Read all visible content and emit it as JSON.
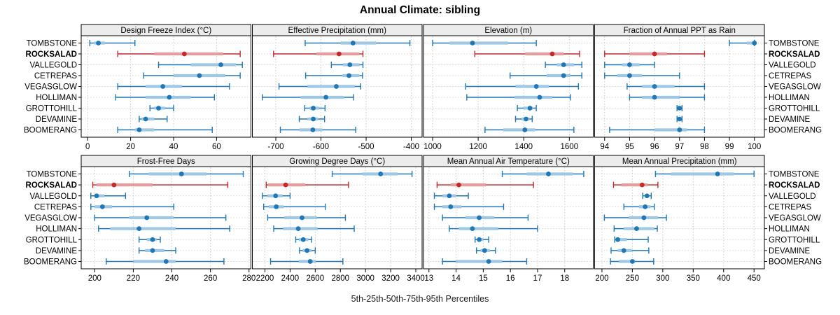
{
  "title": "Annual Climate: sibling",
  "footer": "5th-25th-50th-75th-95th Percentiles",
  "sites": [
    "TOMBSTONE",
    "ROCKSALAD",
    "VALLEGOLD",
    "CETREPAS",
    "VEGASGLOW",
    "HOLLIMAN",
    "GROTTOHILL",
    "DEVAMINE",
    "BOOMERANG"
  ],
  "highlight_site": "ROCKSALAD",
  "colors": {
    "series_line": "#1F77B4",
    "series_band": "#9EC8E4",
    "highlight_line": "#C32A2A",
    "highlight_band": "#E49C9C",
    "grid": "#c9c9c9",
    "panel_border": "#000000",
    "header_bg": "#ececec"
  },
  "chart_data": {
    "type": "dotplot-percentiles",
    "title": "Annual Climate: sibling",
    "caption": "5th-25th-50th-75th-95th Percentiles",
    "percentile_labels": [
      "5th",
      "25th",
      "50th",
      "75th",
      "95th"
    ],
    "rows": [
      "TOMBSTONE",
      "ROCKSALAD",
      "VALLEGOLD",
      "CETREPAS",
      "VEGASGLOW",
      "HOLLIMAN",
      "GROTTOHILL",
      "DEVAMINE",
      "BOOMERANG"
    ],
    "highlight_row": "ROCKSALAD",
    "panels": [
      {
        "title": "Design Freeze Index (°C)",
        "grid_row": 0,
        "grid_col": 0,
        "xlim": [
          -3,
          76
        ],
        "ticks": [
          0,
          20,
          40,
          60
        ],
        "values": [
          [
            1,
            3,
            5,
            8,
            22
          ],
          [
            14,
            31,
            45,
            63,
            71
          ],
          [
            33,
            48,
            62,
            69,
            72
          ],
          [
            26,
            40,
            52,
            64,
            71
          ],
          [
            14,
            27,
            35,
            44,
            66
          ],
          [
            13,
            27,
            38,
            48,
            59
          ],
          [
            29,
            31,
            33,
            36,
            40
          ],
          [
            24,
            25,
            27,
            31,
            37
          ],
          [
            14,
            22,
            24,
            31,
            58
          ]
        ]
      },
      {
        "title": "Effective Precipitation (mm)",
        "grid_row": 0,
        "grid_col": 1,
        "xlim": [
          -752,
          -376
        ],
        "ticks": [
          -700,
          -600,
          -500,
          -400
        ],
        "values": [
          [
            -635,
            -556,
            -529,
            -478,
            -403
          ],
          [
            -705,
            -610,
            -560,
            -515,
            -507
          ],
          [
            -577,
            -551,
            -536,
            -515,
            -507
          ],
          [
            -634,
            -553,
            -538,
            -515,
            -508
          ],
          [
            -693,
            -630,
            -566,
            -525,
            -512
          ],
          [
            -730,
            -645,
            -589,
            -549,
            -528
          ],
          [
            -636,
            -625,
            -617,
            -604,
            -591
          ],
          [
            -648,
            -630,
            -617,
            -606,
            -592
          ],
          [
            -690,
            -648,
            -618,
            -597,
            -523
          ]
        ]
      },
      {
        "title": "Elevation (m)",
        "grid_row": 0,
        "grid_col": 2,
        "xlim": [
          960,
          1705
        ],
        "ticks": [
          1000,
          1200,
          1400,
          1600
        ],
        "values": [
          [
            1000,
            1075,
            1175,
            1330,
            1455
          ],
          [
            1185,
            1405,
            1525,
            1575,
            1645
          ],
          [
            1495,
            1545,
            1575,
            1620,
            1655
          ],
          [
            1340,
            1500,
            1575,
            1605,
            1655
          ],
          [
            1145,
            1365,
            1455,
            1510,
            1640
          ],
          [
            1150,
            1360,
            1470,
            1525,
            1605
          ],
          [
            1372,
            1400,
            1427,
            1440,
            1455
          ],
          [
            1364,
            1390,
            1410,
            1425,
            1437
          ],
          [
            1230,
            1310,
            1405,
            1450,
            1620
          ]
        ]
      },
      {
        "title": "Fraction of Annual PPT as Rain",
        "grid_row": 0,
        "grid_col": 3,
        "xlim": [
          93.6,
          100.4
        ],
        "ticks": [
          94,
          95,
          96,
          97,
          98,
          99,
          100
        ],
        "values": [
          [
            99,
            99.7,
            100,
            100,
            100
          ],
          [
            94,
            95,
            96,
            96.5,
            98
          ],
          [
            94,
            94.7,
            95,
            95.4,
            96
          ],
          [
            94,
            94.5,
            95,
            95.5,
            97
          ],
          [
            94.9,
            95.5,
            96,
            96.8,
            98
          ],
          [
            95,
            95.5,
            96,
            97,
            98
          ],
          [
            96.9,
            97,
            97,
            97,
            97.1
          ],
          [
            96.9,
            97,
            97,
            97,
            97.1
          ],
          [
            94.2,
            96,
            97,
            97.3,
            98
          ]
        ]
      },
      {
        "title": "Frost-Free Days",
        "grid_row": 1,
        "grid_col": 0,
        "xlim": [
          193,
          281
        ],
        "ticks": [
          200,
          220,
          240,
          260,
          280
        ],
        "values": [
          [
            218,
            228,
            245,
            258,
            277
          ],
          [
            199,
            201,
            210,
            230,
            269
          ],
          [
            198,
            200,
            201,
            205,
            216
          ],
          [
            198,
            200,
            204,
            209,
            241
          ],
          [
            200,
            218,
            227,
            241,
            268
          ],
          [
            202,
            208,
            223,
            242,
            270
          ],
          [
            223,
            227,
            230,
            232,
            234
          ],
          [
            223,
            226,
            230,
            236,
            242
          ],
          [
            206,
            220,
            237,
            242,
            267
          ]
        ]
      },
      {
        "title": "Growing Degree Days (°C)",
        "grid_row": 1,
        "grid_col": 1,
        "xlim": [
          2100,
          3450
        ],
        "ticks": [
          2200,
          2400,
          2600,
          2800,
          3000,
          3200,
          3400
        ],
        "values": [
          [
            2735,
            2975,
            3120,
            3255,
            3370
          ],
          [
            2210,
            2225,
            2365,
            2520,
            2865
          ],
          [
            2180,
            2220,
            2285,
            2340,
            2400
          ],
          [
            2190,
            2230,
            2290,
            2350,
            2680
          ],
          [
            2222,
            2355,
            2495,
            2615,
            2840
          ],
          [
            2270,
            2345,
            2465,
            2620,
            2910
          ],
          [
            2445,
            2470,
            2505,
            2545,
            2570
          ],
          [
            2475,
            2500,
            2535,
            2570,
            2600
          ],
          [
            2245,
            2470,
            2560,
            2605,
            2820
          ]
        ]
      },
      {
        "title": "Mean Annual Air Temperature (°C)",
        "grid_row": 1,
        "grid_col": 2,
        "xlim": [
          12.8,
          19.05
        ],
        "ticks": [
          13,
          14,
          15,
          16,
          17,
          18
        ],
        "values": [
          [
            15.7,
            16.6,
            17.4,
            18.3,
            18.7
          ],
          [
            13.3,
            13.8,
            14.1,
            15.1,
            16.85
          ],
          [
            13.2,
            13.5,
            13.75,
            14.0,
            14.45
          ],
          [
            13.2,
            13.5,
            13.8,
            14.2,
            15.75
          ],
          [
            13.5,
            14.35,
            14.85,
            15.4,
            16.65
          ],
          [
            13.75,
            14.1,
            14.6,
            15.55,
            17.0
          ],
          [
            14.7,
            14.8,
            14.85,
            15.0,
            15.2
          ],
          [
            14.75,
            14.9,
            15.05,
            15.25,
            15.45
          ],
          [
            13.5,
            14.0,
            15.2,
            15.7,
            16.6
          ]
        ]
      },
      {
        "title": "Mean Annual Precipitation (mm)",
        "grid_row": 1,
        "grid_col": 3,
        "xlim": [
          188,
          467
        ],
        "ticks": [
          200,
          250,
          300,
          350,
          400,
          450
        ],
        "values": [
          [
            288,
            313,
            390,
            417,
            450
          ],
          [
            219,
            232,
            266,
            275,
            292
          ],
          [
            267,
            271,
            274,
            277,
            281
          ],
          [
            236,
            261,
            271,
            280,
            286
          ],
          [
            204,
            244,
            269,
            292,
            306
          ],
          [
            220,
            236,
            257,
            286,
            291
          ],
          [
            221,
            224,
            226,
            241,
            276
          ],
          [
            215,
            226,
            236,
            249,
            277
          ],
          [
            214,
            228,
            250,
            254,
            285
          ]
        ]
      }
    ]
  }
}
